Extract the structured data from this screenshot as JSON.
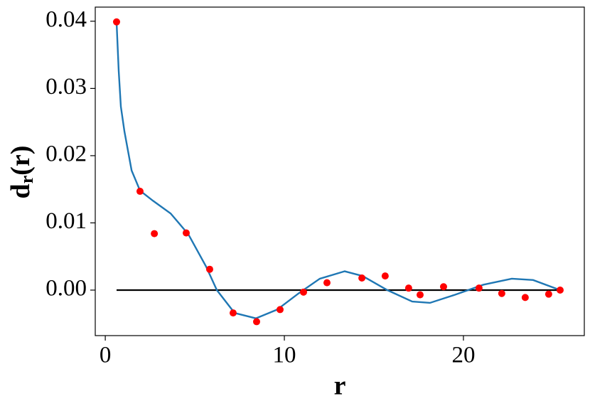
{
  "chart_data": {
    "type": "scatter",
    "xlabel": "r",
    "ylabel": {
      "main": "d",
      "sub": "r",
      "rest": "(r)"
    },
    "xlim": [
      -0.56,
      26.75
    ],
    "ylim": [
      -0.00677,
      0.0421
    ],
    "xticks": [
      0,
      10,
      20
    ],
    "yticks": [
      {
        "value": 0.0,
        "label": "0.00"
      },
      {
        "value": 0.01,
        "label": "0.01"
      },
      {
        "value": 0.02,
        "label": "0.02"
      },
      {
        "value": 0.03,
        "label": "0.03"
      },
      {
        "value": 0.04,
        "label": "0.04"
      }
    ],
    "points": {
      "color": "#ff0000",
      "x": [
        0.63,
        1.94,
        2.74,
        4.52,
        5.83,
        7.14,
        8.45,
        9.76,
        11.07,
        12.38,
        14.33,
        15.63,
        16.94,
        17.58,
        18.89,
        20.87,
        22.14,
        23.45,
        24.76,
        25.4
      ],
      "y": [
        0.0399,
        0.0147,
        0.0084,
        0.0085,
        0.0031,
        -0.0034,
        -0.0047,
        -0.0029,
        -0.0003,
        0.0011,
        0.0018,
        0.0021,
        0.0003,
        -0.0007,
        0.0005,
        0.0003,
        -0.0005,
        -0.0011,
        -0.0006,
        0.0
      ]
    },
    "curve": {
      "color": "#1f77b4",
      "x": [
        0.63,
        0.75,
        0.87,
        1.07,
        1.47,
        1.94,
        2.66,
        3.65,
        4.64,
        5.63,
        6.23,
        7.22,
        8.41,
        9.6,
        10.79,
        11.98,
        13.37,
        14.37,
        15.75,
        17.14,
        18.13,
        19.52,
        21.11,
        22.7,
        23.89,
        25.4
      ],
      "y": [
        0.0399,
        0.0326,
        0.0273,
        0.0236,
        0.0178,
        0.0148,
        0.0133,
        0.0114,
        0.0083,
        0.0035,
        0.0,
        -0.0034,
        -0.0042,
        -0.0029,
        -0.0005,
        0.0017,
        0.0028,
        0.0021,
        0.0,
        -0.0017,
        -0.0019,
        -0.0007,
        0.0008,
        0.0017,
        0.0015,
        0.0
      ]
    },
    "baseline": {
      "color": "#000000",
      "x": [
        0.63,
        25.4
      ],
      "y": [
        0.0,
        0.0
      ]
    }
  }
}
